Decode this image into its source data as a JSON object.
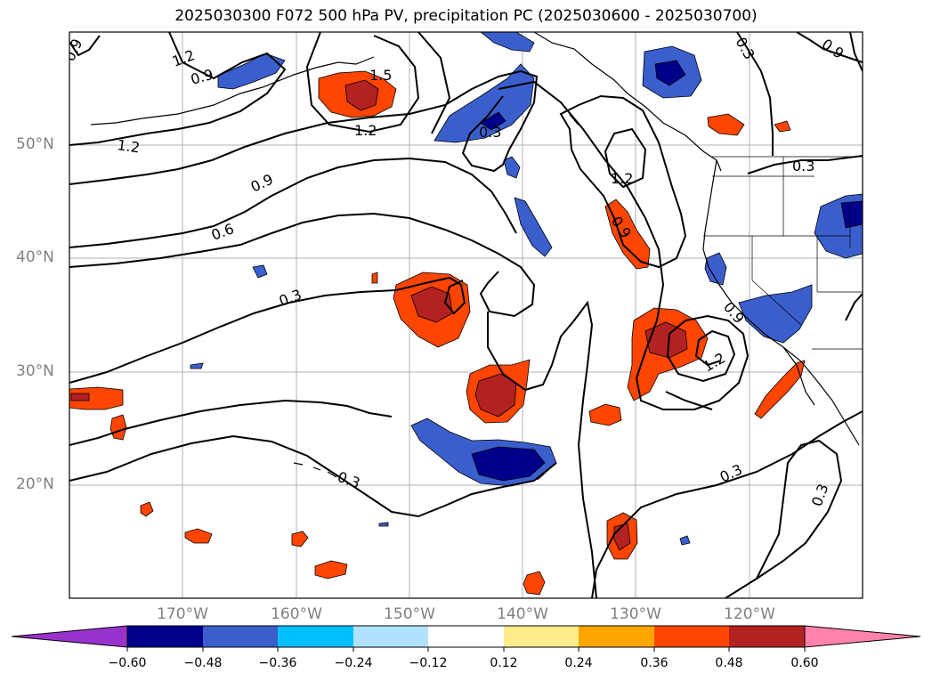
{
  "title": "2025030300 F072 500 hPa PV, precipitation PC (2025030600 - 2025030700)",
  "map_extent": {
    "lon_min": -180,
    "lon_max": -110,
    "lat_min": 10,
    "lat_max": 60
  },
  "latitude_ticks": [
    {
      "value": 50,
      "label": "50°N"
    },
    {
      "value": 40,
      "label": "40°N"
    },
    {
      "value": 30,
      "label": "30°N"
    },
    {
      "value": 20,
      "label": "20°N"
    }
  ],
  "longitude_ticks": [
    {
      "value": -170,
      "label": "170°W"
    },
    {
      "value": -160,
      "label": "160°W"
    },
    {
      "value": -150,
      "label": "150°W"
    },
    {
      "value": -140,
      "label": "140°W"
    },
    {
      "value": -130,
      "label": "130°W"
    },
    {
      "value": -120,
      "label": "120°W"
    }
  ],
  "contour_labels": [
    "0.9",
    "1.2",
    "0.9",
    "1.5",
    "1.2",
    "0.3",
    "0.3",
    "0.9",
    "1.2",
    "0.9",
    "0.6",
    "0.3",
    "1.2",
    "0.9",
    "0.3",
    "0.9",
    "1.2",
    "0.3",
    "0.3",
    "0.3"
  ],
  "colorbar": {
    "colors": [
      "#9932cc",
      "#00008b",
      "#3a5fcd",
      "#00bfff",
      "#b0e2ff",
      "#ffffff",
      "#ffec8b",
      "#ffa500",
      "#ff4500",
      "#b22222",
      "#ff82ab"
    ],
    "tick_labels": [
      "−0.60",
      "−0.48",
      "−0.36",
      "−0.24",
      "−0.12",
      "0.12",
      "0.24",
      "0.36",
      "0.48",
      "0.60"
    ],
    "extend": "both"
  },
  "layers": [
    "500 hPa PV contours (black)",
    "precipitation PC (shaded)"
  ]
}
